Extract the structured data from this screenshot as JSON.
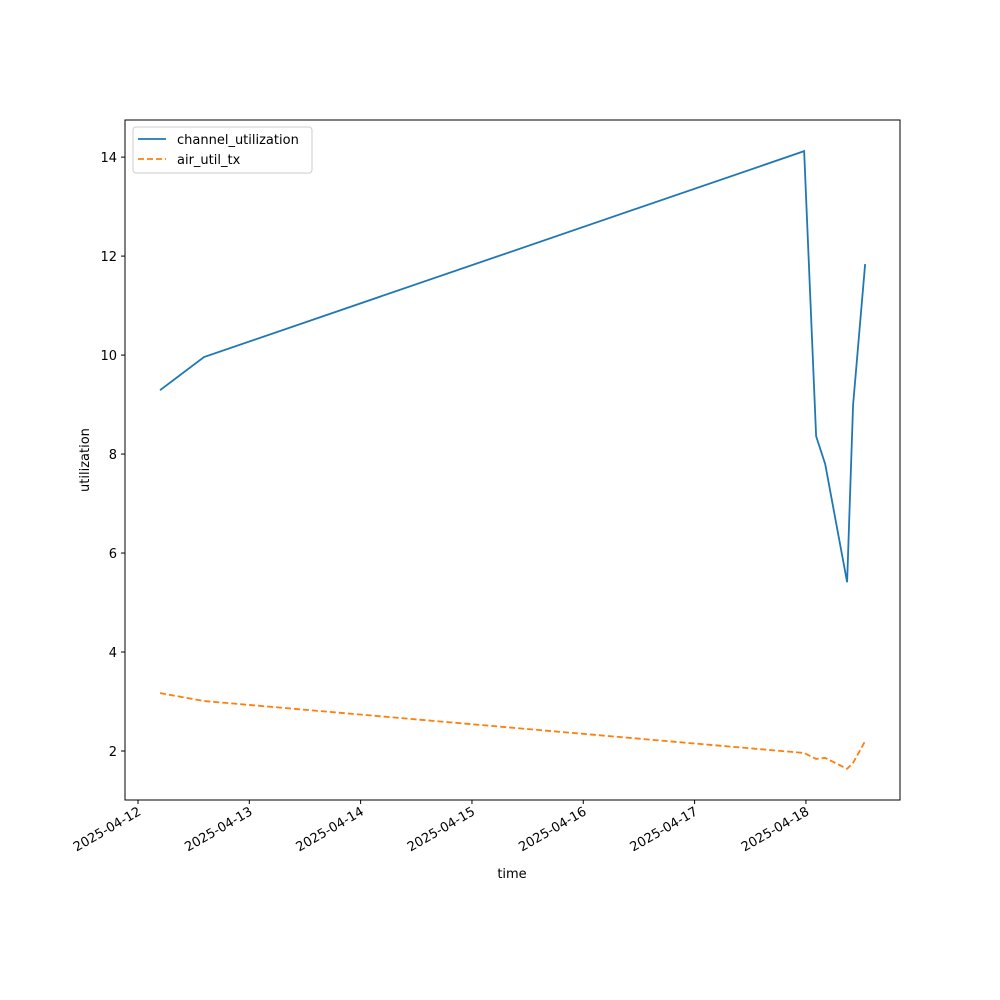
{
  "chart_data": {
    "type": "line",
    "x_label": "time",
    "y_label": "utilization",
    "x": [
      "2025-04-12T04:45",
      "2025-04-12T14:14",
      "2025-04-17T23:37",
      "2025-04-18T02:12",
      "2025-04-18T04:09",
      "2025-04-18T08:53",
      "2025-04-18T10:10",
      "2025-04-18T12:46"
    ],
    "series": [
      {
        "name": "channel_utilization",
        "color": "#1f77b4",
        "dash": "solid",
        "values": [
          9.29,
          9.96,
          14.12,
          8.36,
          7.8,
          5.41,
          8.99,
          11.84
        ]
      },
      {
        "name": "air_util_tx",
        "color": "#ff7f0e",
        "dash": "dashed",
        "values": [
          3.17,
          3.01,
          1.96,
          1.84,
          1.86,
          1.64,
          1.76,
          2.2
        ]
      }
    ],
    "xlim": [
      "2025-04-11T21:12",
      "2025-04-18T20:17"
    ],
    "xticks": [
      "2025-04-12",
      "2025-04-13",
      "2025-04-14",
      "2025-04-15",
      "2025-04-16",
      "2025-04-17",
      "2025-04-18"
    ],
    "ylim": [
      1.01,
      14.75
    ],
    "yticks": [
      2,
      4,
      6,
      8,
      10,
      12,
      14
    ],
    "grid": false,
    "legend": "upper left"
  }
}
